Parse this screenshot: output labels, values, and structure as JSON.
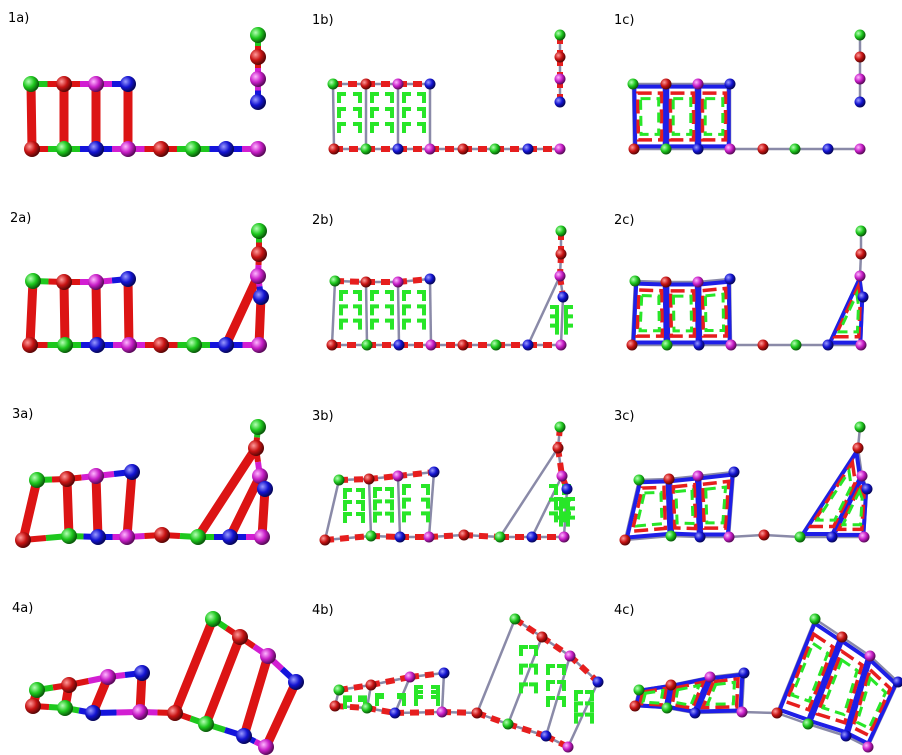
{
  "colors": {
    "green": "#1ec81e",
    "red": "#dc1414",
    "blue": "#1414dc",
    "magenta": "#d21ed2",
    "grey": "#8a8aa8",
    "dash_green": "#28e628",
    "dash_red": "#e61e1e",
    "dash_blue": "#1e1ee6"
  },
  "panels": [
    {
      "id": "1a",
      "label": "1a)",
      "style": "a"
    },
    {
      "id": "1b",
      "label": "1b)",
      "style": "b"
    },
    {
      "id": "1c",
      "label": "1c)",
      "style": "c"
    },
    {
      "id": "2a",
      "label": "2a)",
      "style": "a"
    },
    {
      "id": "2b",
      "label": "2b)",
      "style": "b"
    },
    {
      "id": "2c",
      "label": "2c)",
      "style": "c"
    },
    {
      "id": "3a",
      "label": "3a)",
      "style": "a"
    },
    {
      "id": "3b",
      "label": "3b)",
      "style": "b"
    },
    {
      "id": "3c",
      "label": "3c)",
      "style": "c"
    },
    {
      "id": "4a",
      "label": "4a)",
      "style": "a"
    },
    {
      "id": "4b",
      "label": "4b)",
      "style": "b"
    },
    {
      "id": "4c",
      "label": "4c)",
      "style": "c"
    }
  ]
}
